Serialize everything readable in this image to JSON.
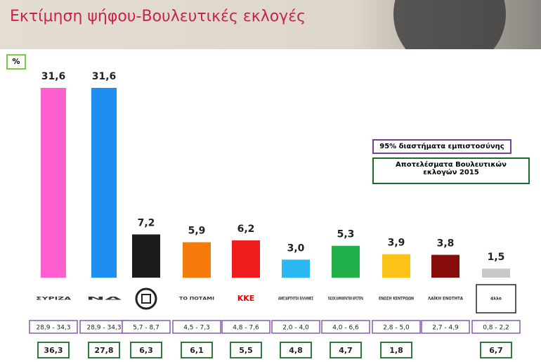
{
  "chart_data": {
    "type": "bar",
    "title": "Εκτίμηση ψήφου-Βουλευτικές εκλογές",
    "unit_label": "%",
    "categories": [
      "ΣΥΡΙΖΑ",
      "ΝΔ",
      null,
      "ΤΟ ΠΟΤΑΜΙ",
      "ΚΚΕ",
      "ΑΝΕΞΑΡΤΗΤΟΙ ΕΛΛΗΝΕΣ",
      "ΠΑΣΟΚ ΔΗΜΟΚΡΑΤΙΚΗ ΑΡΙΣΤΕΡΑ",
      "ΕΝΩΣΗ ΚΕΝΤΡΩΩΝ",
      "ΛΑΪΚΗ ΕΝΟΤΗΤΑ",
      "άλλο"
    ],
    "values": [
      31.6,
      31.6,
      7.2,
      5.9,
      6.2,
      3.0,
      5.3,
      3.9,
      3.8,
      1.5
    ],
    "value_labels": [
      "31,6",
      "31,6",
      "7,2",
      "5,9",
      "6,2",
      "3,0",
      "5,3",
      "3,9",
      "3,8",
      "1,5"
    ],
    "colors": [
      "#ff5fcf",
      "#1e8ff0",
      "#1c1c1c",
      "#f57a0c",
      "#ee1c1c",
      "#29b8ef",
      "#22b04a",
      "#fbc317",
      "#870c0c",
      "#c8c8c8"
    ],
    "intervals": [
      "28,9 - 34,3",
      "28,9 - 34,3",
      "5,7 - 8,7",
      "4,5 - 7,3",
      "4,8 - 7,6",
      "2,0 - 4,0",
      "4,0 - 6,6",
      "2,8 - 5,0",
      "2,7 - 4,9",
      "0,8 - 2,2"
    ],
    "previous_results": [
      "36,3",
      "27,8",
      "6,3",
      "6,1",
      "5,5",
      "4,8",
      "4,7",
      "1,8",
      null,
      "6,7"
    ],
    "legend": {
      "intervals": "95% διαστήματα εμπιστοσύνης",
      "previous_results": "Αποτελέσματα Βουλευτικών εκλογών 2015"
    }
  }
}
